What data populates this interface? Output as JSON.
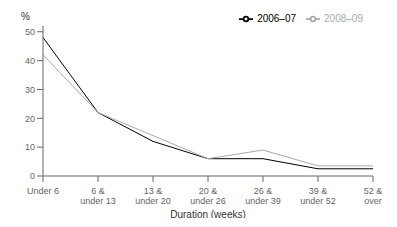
{
  "chart_data": {
    "type": "line",
    "categories": [
      "Under 6",
      "6 &\nunder 13",
      "13 &\nunder 20",
      "20 &\nunder 26",
      "26 &\nunder 39",
      "39 &\nunder 52",
      "52 &\nover"
    ],
    "series": [
      {
        "name": "2006–07",
        "color": "#000000",
        "values": [
          48,
          22,
          12,
          6,
          6,
          2.5,
          2.5
        ]
      },
      {
        "name": "2008–09",
        "color": "#aaaaaa",
        "values": [
          42,
          22,
          14,
          6,
          9,
          3.5,
          3.5
        ]
      }
    ],
    "xlabel": "Duration (weeks)",
    "ylabel": "%",
    "ylim": [
      0,
      52
    ],
    "yticks": [
      0,
      10,
      20,
      30,
      40,
      50
    ],
    "grid": false,
    "legend": "upper right"
  }
}
